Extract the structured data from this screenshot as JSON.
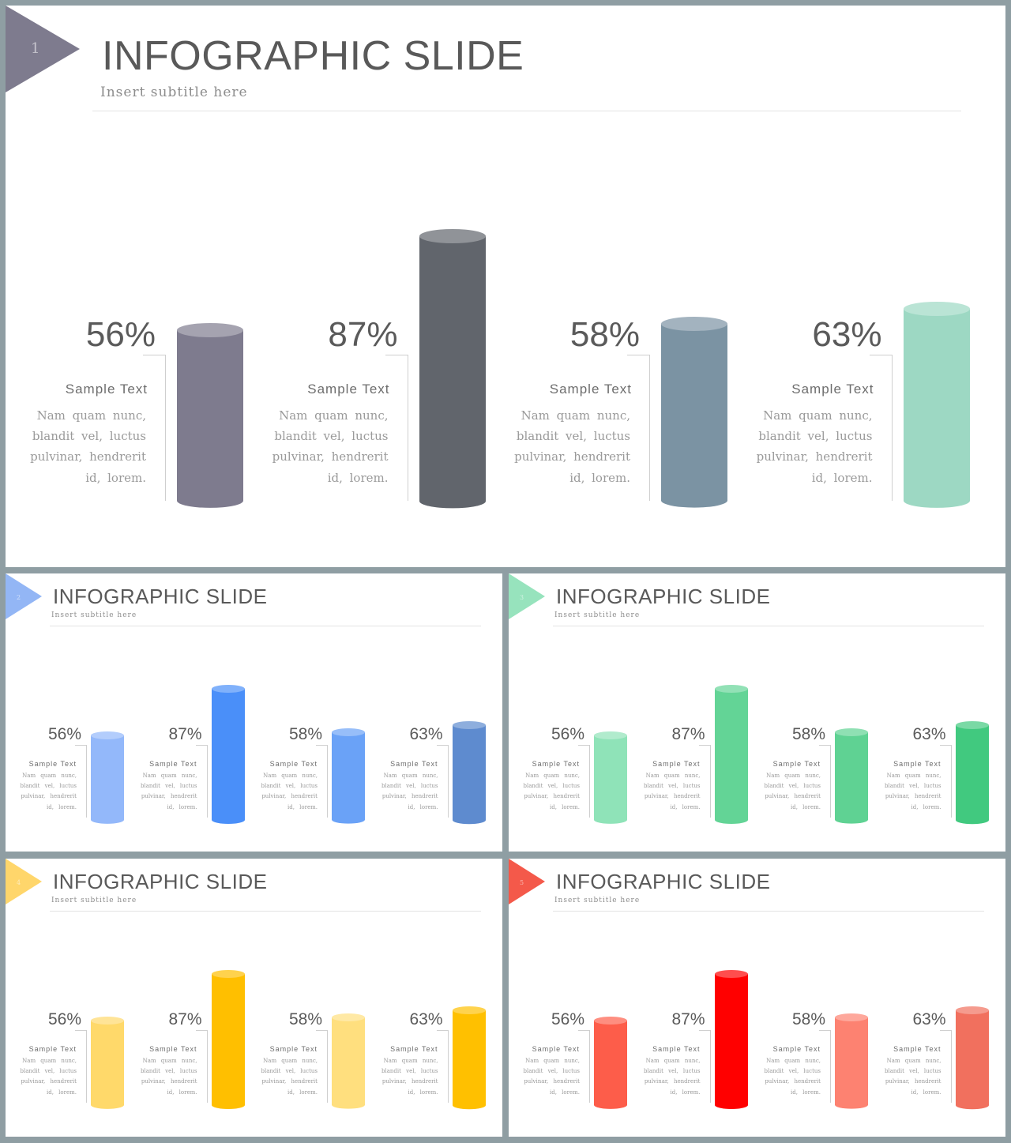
{
  "slides": [
    {
      "number": "1",
      "title": "INFOGRAPHIC SLIDE",
      "subtitle": "Insert subtitle here",
      "accent_color": "#7e7b8e",
      "bars": [
        {
          "percent_label": "56%",
          "value": 56,
          "heading": "Sample Text",
          "body": "Nam quam nunc, blandit vel, luctus pulvinar, hendrerit id, lorem.",
          "color": "#7e7b8e"
        },
        {
          "percent_label": "87%",
          "value": 87,
          "heading": "Sample Text",
          "body": "Nam quam nunc, blandit vel, luctus pulvinar, hendrerit id, lorem.",
          "color": "#61656c"
        },
        {
          "percent_label": "58%",
          "value": 58,
          "heading": "Sample Text",
          "body": "Nam quam nunc, blandit vel, luctus pulvinar, hendrerit id, lorem.",
          "color": "#7b93a3"
        },
        {
          "percent_label": "63%",
          "value": 63,
          "heading": "Sample Text",
          "body": "Nam quam nunc, blandit vel, luctus pulvinar, hendrerit id, lorem.",
          "color": "#9dd8c3"
        }
      ]
    },
    {
      "number": "2",
      "title": "INFOGRAPHIC SLIDE",
      "subtitle": "Insert subtitle here",
      "accent_color": "#93b6f5",
      "bars": [
        {
          "percent_label": "56%",
          "value": 56,
          "heading": "Sample Text",
          "body": "Nam quam nunc, blandit vel, luctus pulvinar, hendrerit id, lorem.",
          "color": "#93b8fa"
        },
        {
          "percent_label": "87%",
          "value": 87,
          "heading": "Sample Text",
          "body": "Nam quam nunc, blandit vel, luctus pulvinar, hendrerit id, lorem.",
          "color": "#4a8ff9"
        },
        {
          "percent_label": "58%",
          "value": 58,
          "heading": "Sample Text",
          "body": "Nam quam nunc, blandit vel, luctus pulvinar, hendrerit id, lorem.",
          "color": "#6aa2f7"
        },
        {
          "percent_label": "63%",
          "value": 63,
          "heading": "Sample Text",
          "body": "Nam quam nunc, blandit vel, luctus pulvinar, hendrerit id, lorem.",
          "color": "#5e8bcf"
        }
      ]
    },
    {
      "number": "3",
      "title": "INFOGRAPHIC SLIDE",
      "subtitle": "Insert subtitle here",
      "accent_color": "#97e3bd",
      "bars": [
        {
          "percent_label": "56%",
          "value": 56,
          "heading": "Sample Text",
          "body": "Nam quam nunc, blandit vel, luctus pulvinar, hendrerit id, lorem.",
          "color": "#8fe3b8"
        },
        {
          "percent_label": "87%",
          "value": 87,
          "heading": "Sample Text",
          "body": "Nam quam nunc, blandit vel, luctus pulvinar, hendrerit id, lorem.",
          "color": "#63d496"
        },
        {
          "percent_label": "58%",
          "value": 58,
          "heading": "Sample Text",
          "body": "Nam quam nunc, blandit vel, luctus pulvinar, hendrerit id, lorem.",
          "color": "#5fd293"
        },
        {
          "percent_label": "63%",
          "value": 63,
          "heading": "Sample Text",
          "body": "Nam quam nunc, blandit vel, luctus pulvinar, hendrerit id, lorem.",
          "color": "#41c97f"
        }
      ]
    },
    {
      "number": "4",
      "title": "INFOGRAPHIC SLIDE",
      "subtitle": "Insert subtitle here",
      "accent_color": "#ffd66b",
      "bars": [
        {
          "percent_label": "56%",
          "value": 56,
          "heading": "Sample Text",
          "body": "Nam quam nunc, blandit vel, luctus pulvinar, hendrerit id, lorem.",
          "color": "#ffd96a"
        },
        {
          "percent_label": "87%",
          "value": 87,
          "heading": "Sample Text",
          "body": "Nam quam nunc, blandit vel, luctus pulvinar, hendrerit id, lorem.",
          "color": "#ffbf00"
        },
        {
          "percent_label": "58%",
          "value": 58,
          "heading": "Sample Text",
          "body": "Nam quam nunc, blandit vel, luctus pulvinar, hendrerit id, lorem.",
          "color": "#ffdf7e"
        },
        {
          "percent_label": "63%",
          "value": 63,
          "heading": "Sample Text",
          "body": "Nam quam nunc, blandit vel, luctus pulvinar, hendrerit id, lorem.",
          "color": "#ffc000"
        }
      ]
    },
    {
      "number": "5",
      "title": "INFOGRAPHIC SLIDE",
      "subtitle": "Insert subtitle here",
      "accent_color": "#f4594a",
      "bars": [
        {
          "percent_label": "56%",
          "value": 56,
          "heading": "Sample Text",
          "body": "Nam quam nunc, blandit vel, luctus pulvinar, hendrerit id, lorem.",
          "color": "#fd5d4a"
        },
        {
          "percent_label": "87%",
          "value": 87,
          "heading": "Sample Text",
          "body": "Nam quam nunc, blandit vel, luctus pulvinar, hendrerit id, lorem.",
          "color": "#ff0000"
        },
        {
          "percent_label": "58%",
          "value": 58,
          "heading": "Sample Text",
          "body": "Nam quam nunc, blandit vel, luctus pulvinar, hendrerit id, lorem.",
          "color": "#fd8271"
        },
        {
          "percent_label": "63%",
          "value": 63,
          "heading": "Sample Text",
          "body": "Nam quam nunc, blandit vel, luctus pulvinar, hendrerit id, lorem.",
          "color": "#f1705e"
        }
      ]
    }
  ]
}
